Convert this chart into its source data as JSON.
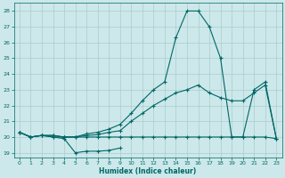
{
  "xlabel": "Humidex (Indice chaleur)",
  "bg_color": "#cce8ea",
  "grid_color": "#aacccc",
  "line_color": "#006666",
  "xlim": [
    -0.5,
    23.5
  ],
  "ylim": [
    18.7,
    28.5
  ],
  "yticks": [
    19,
    20,
    21,
    22,
    23,
    24,
    25,
    26,
    27,
    28
  ],
  "xticks": [
    0,
    1,
    2,
    3,
    4,
    5,
    6,
    7,
    8,
    9,
    10,
    11,
    12,
    13,
    14,
    15,
    16,
    17,
    18,
    19,
    20,
    21,
    22,
    23
  ],
  "line1_x": [
    0,
    1,
    2,
    3,
    4,
    5,
    6,
    7,
    8,
    9
  ],
  "line1_y": [
    20.3,
    20.0,
    20.1,
    20.0,
    19.9,
    19.0,
    19.1,
    19.1,
    19.15,
    19.3
  ],
  "line2_x": [
    0,
    1,
    2,
    3,
    4,
    5,
    6,
    7,
    8,
    9,
    10,
    11,
    12,
    13,
    14,
    15,
    16,
    17,
    18,
    19,
    20,
    21,
    22,
    23
  ],
  "line2_y": [
    20.3,
    20.0,
    20.1,
    20.0,
    20.0,
    20.0,
    20.0,
    20.0,
    20.0,
    20.0,
    20.0,
    20.0,
    20.0,
    20.0,
    20.0,
    20.0,
    20.0,
    20.0,
    20.0,
    20.0,
    20.0,
    20.0,
    20.0,
    19.9
  ],
  "line3_x": [
    0,
    1,
    2,
    3,
    4,
    5,
    6,
    7,
    8,
    9,
    10,
    11,
    12,
    13,
    14,
    15,
    16,
    17,
    18,
    19,
    20,
    21,
    22,
    23
  ],
  "line3_y": [
    20.3,
    20.0,
    20.1,
    20.1,
    20.0,
    20.0,
    20.1,
    20.15,
    20.3,
    20.4,
    21.0,
    21.5,
    22.0,
    22.4,
    22.8,
    23.0,
    23.3,
    22.8,
    22.5,
    22.3,
    22.3,
    22.8,
    23.3,
    19.9
  ],
  "line4_x": [
    0,
    1,
    2,
    3,
    4,
    5,
    6,
    7,
    8,
    9,
    10,
    11,
    12,
    13,
    14,
    15,
    16,
    17,
    18,
    19,
    20,
    21,
    22,
    23
  ],
  "line4_y": [
    20.3,
    20.0,
    20.1,
    20.1,
    20.0,
    20.0,
    20.2,
    20.3,
    20.5,
    20.8,
    21.5,
    22.3,
    23.0,
    23.5,
    26.3,
    28.0,
    28.0,
    27.0,
    25.0,
    20.0,
    20.0,
    23.0,
    23.5,
    19.9
  ]
}
